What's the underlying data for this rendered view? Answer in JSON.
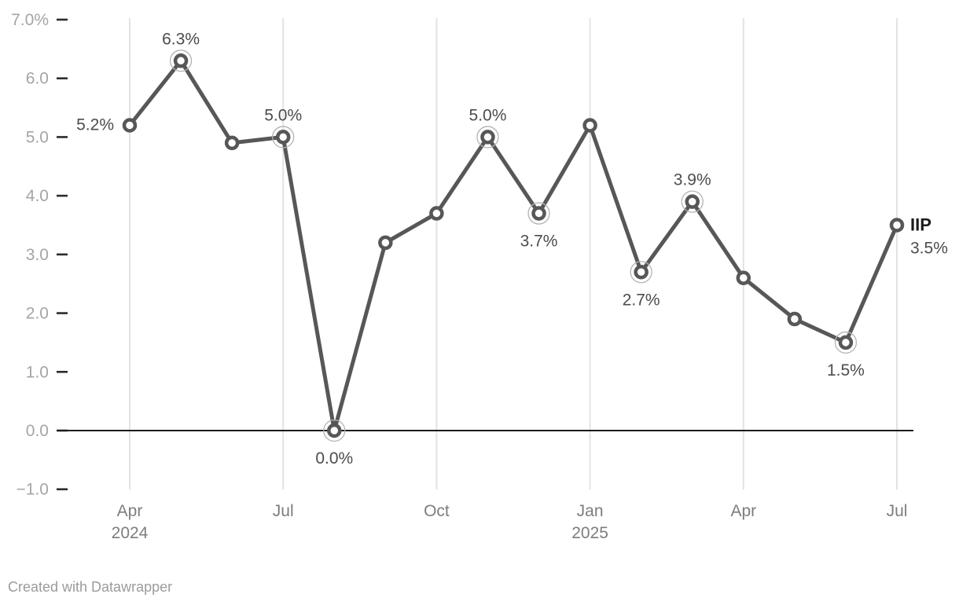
{
  "footer": {
    "credit": "Created with Datawrapper"
  },
  "colors": {
    "line": "#575757",
    "marker_fill": "#ffffff",
    "marker_stroke": "#575757",
    "highlight_ring": "#b3b3b3",
    "grid": "#e3e3e3",
    "zero_line": "#1c1c1c",
    "tick_dash": "#2b2b2b",
    "y_tick_label": "#a5a5a5",
    "x_tick_label": "#7d7d7d",
    "data_label": "#4c4c4c",
    "end_label_title": "#1c1c1c",
    "end_label_value": "#4c4c4c",
    "credit": "#9b9b9b"
  },
  "chart_data": {
    "type": "line",
    "title": "",
    "x": [
      "Apr 2024",
      "May 2024",
      "Jun 2024",
      "Jul 2024",
      "Aug 2024",
      "Sep 2024",
      "Oct 2024",
      "Nov 2024",
      "Dec 2024",
      "Jan 2025",
      "Feb 2025",
      "Mar 2025",
      "Apr 2025",
      "May 2025",
      "Jun 2025",
      "Jul 2025"
    ],
    "series": [
      {
        "name": "IIP",
        "values": [
          5.2,
          6.3,
          4.9,
          5.0,
          0.0,
          3.2,
          3.7,
          5.0,
          3.7,
          5.2,
          2.7,
          3.9,
          2.6,
          1.9,
          1.5,
          3.5
        ]
      }
    ],
    "unit": "%",
    "ylim": [
      -1.0,
      7.0
    ],
    "grid": true,
    "legend_position": "none",
    "y_ticks": [
      {
        "value": 7,
        "label": "7.0%"
      },
      {
        "value": 6,
        "label": "6.0"
      },
      {
        "value": 5,
        "label": "5.0"
      },
      {
        "value": 4,
        "label": "4.0"
      },
      {
        "value": 3,
        "label": "3.0"
      },
      {
        "value": 2,
        "label": "2.0"
      },
      {
        "value": 1,
        "label": "1.0"
      },
      {
        "value": 0,
        "label": "0.0"
      },
      {
        "value": -1,
        "label": "−1.0"
      }
    ],
    "x_ticks": [
      {
        "month_index": 0,
        "label": "Apr",
        "year": "2024"
      },
      {
        "month_index": 3,
        "label": "Jul",
        "year": ""
      },
      {
        "month_index": 6,
        "label": "Oct",
        "year": ""
      },
      {
        "month_index": 9,
        "label": "Jan",
        "year": "2025"
      },
      {
        "month_index": 12,
        "label": "Apr",
        "year": ""
      },
      {
        "month_index": 15,
        "label": "Jul",
        "year": ""
      }
    ],
    "highlighted_indices": [
      1,
      3,
      4,
      7,
      8,
      10,
      11,
      14
    ],
    "point_labels": [
      {
        "index": 0,
        "text": "5.2%",
        "position": "left"
      },
      {
        "index": 1,
        "text": "6.3%",
        "position": "above"
      },
      {
        "index": 3,
        "text": "5.0%",
        "position": "above"
      },
      {
        "index": 4,
        "text": "0.0%",
        "position": "below"
      },
      {
        "index": 7,
        "text": "5.0%",
        "position": "above"
      },
      {
        "index": 8,
        "text": "3.7%",
        "position": "below"
      },
      {
        "index": 10,
        "text": "2.7%",
        "position": "below"
      },
      {
        "index": 11,
        "text": "3.9%",
        "position": "above"
      },
      {
        "index": 14,
        "text": "1.5%",
        "position": "below"
      }
    ],
    "end_label": {
      "title": "IIP",
      "value": "3.5%"
    }
  }
}
